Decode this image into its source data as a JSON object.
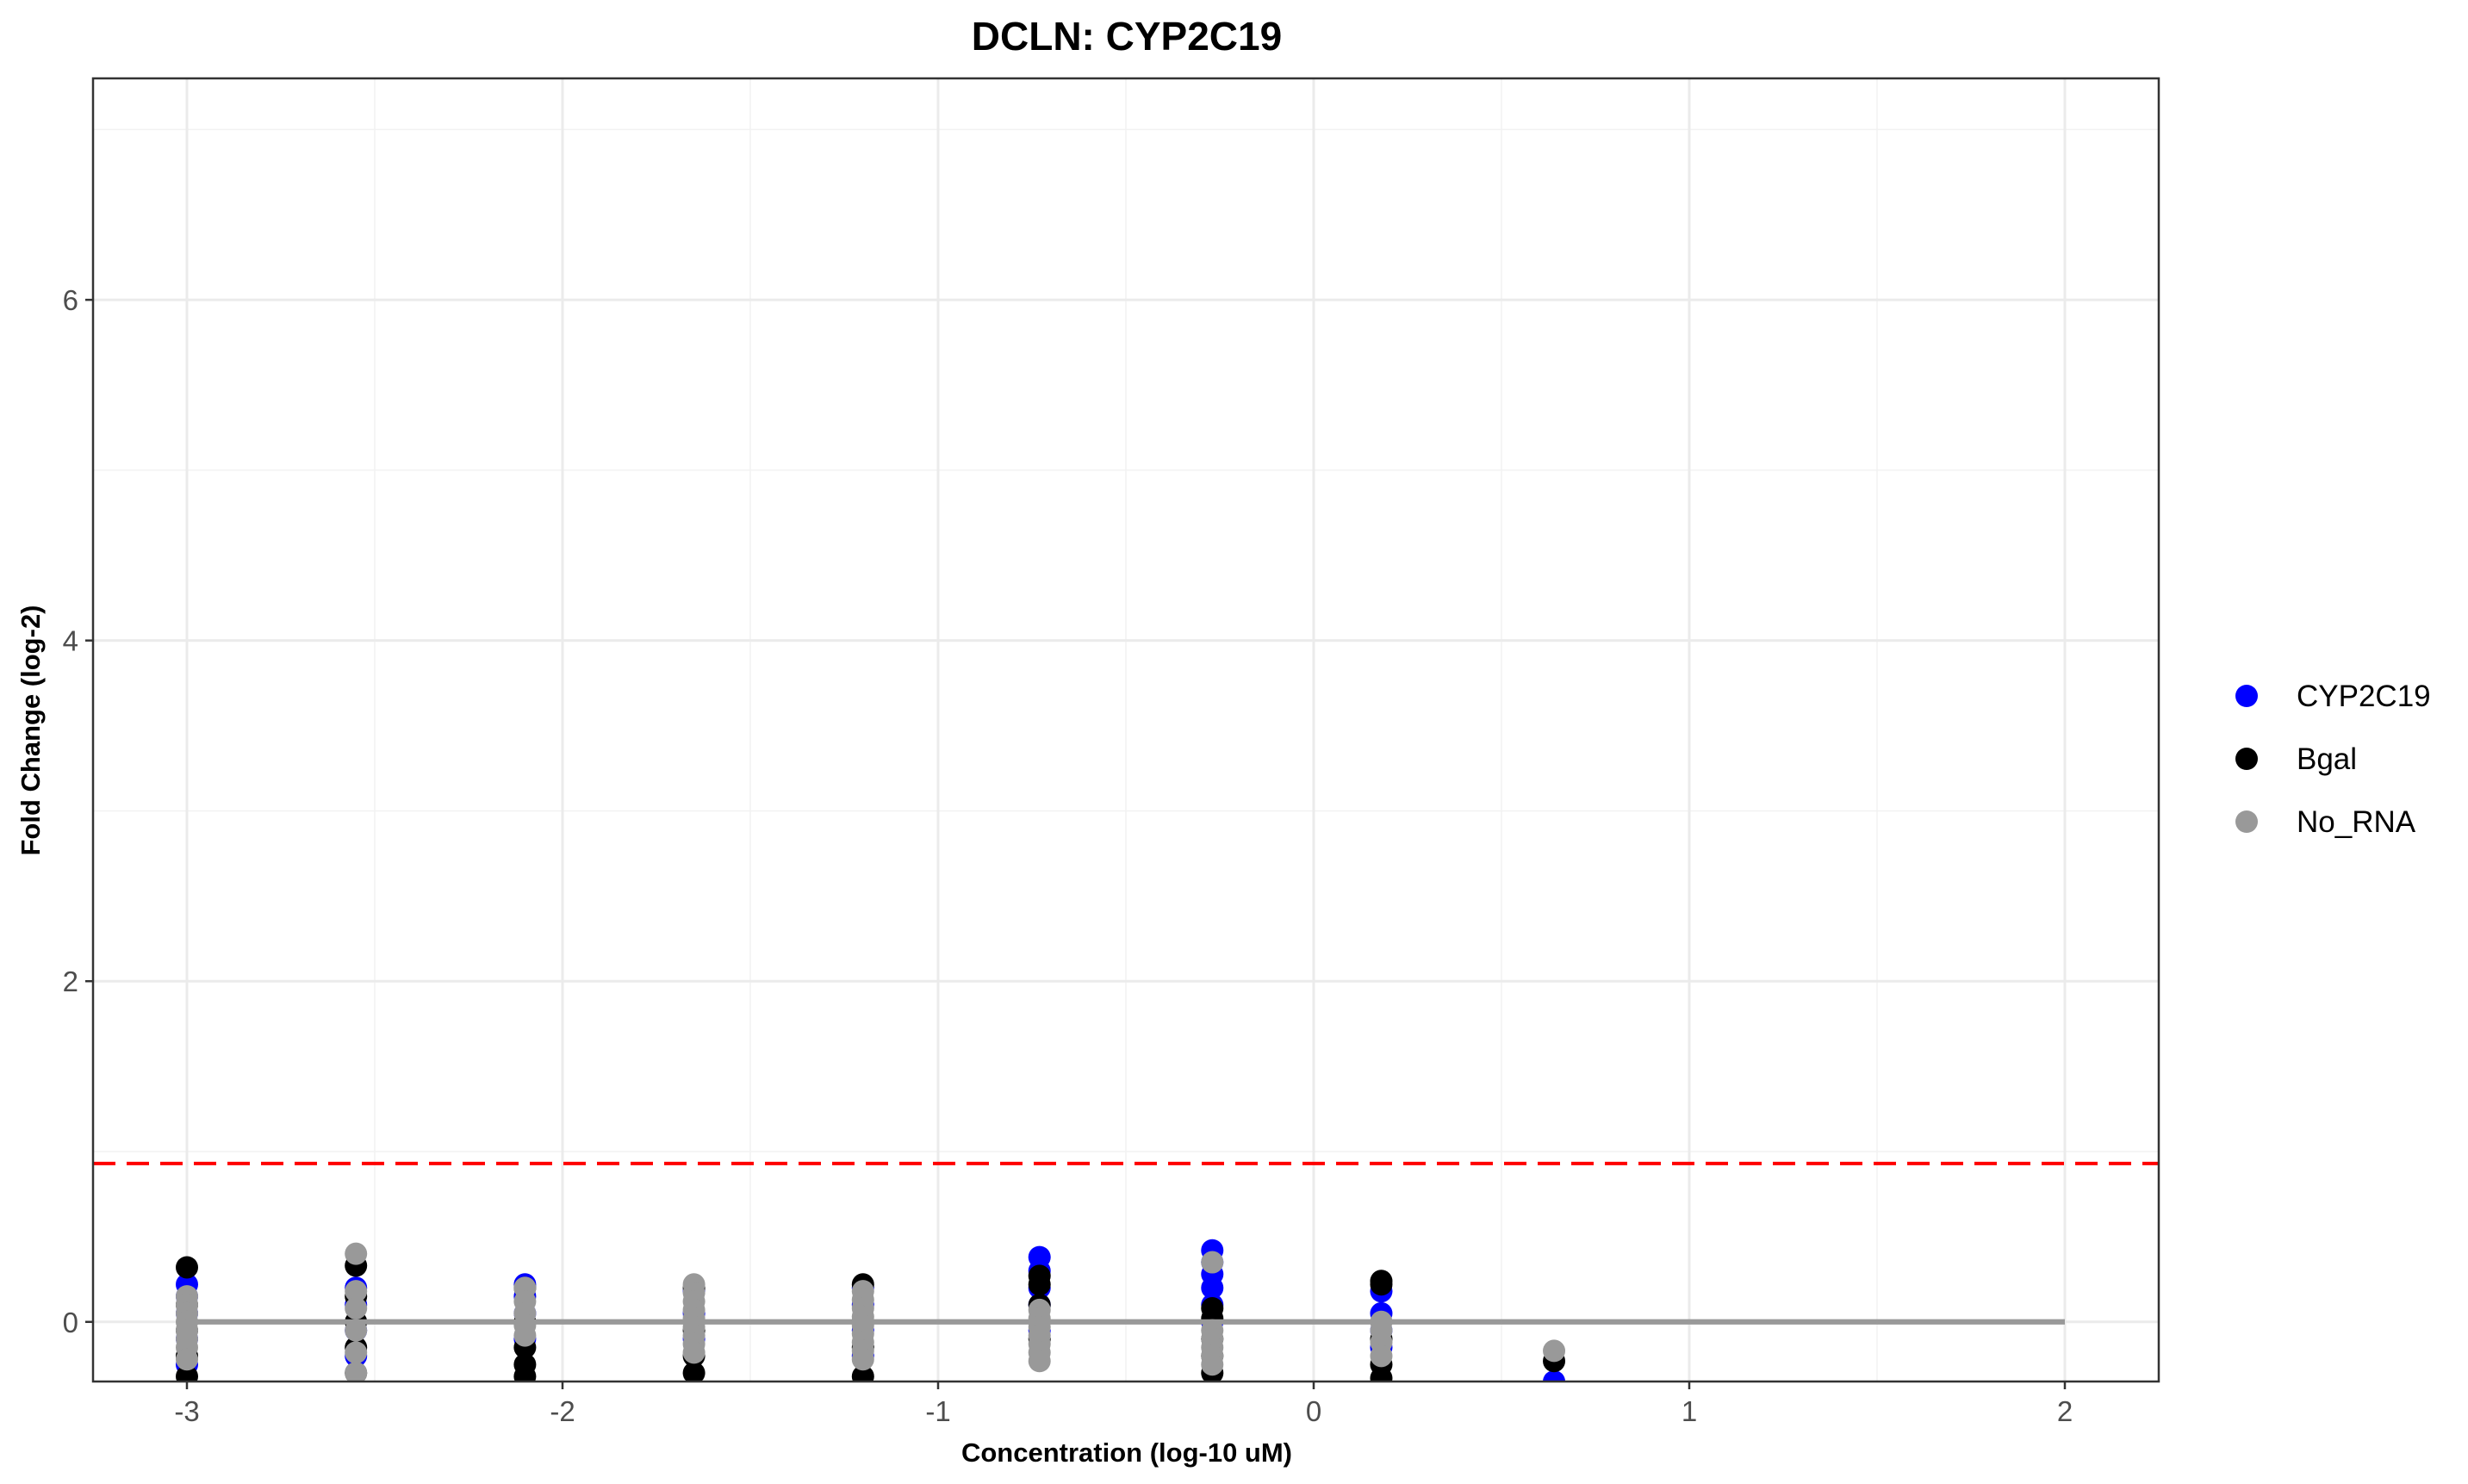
{
  "chart_data": {
    "type": "scatter",
    "title": "DCLN: CYP2C19",
    "xlabel": "Concentration (log-10 uM)",
    "ylabel": "Fold Change (log-2)",
    "xlim": [
      -3.25,
      2.25
    ],
    "ylim": [
      -0.35,
      7.3
    ],
    "x_ticks": [
      -3,
      -2,
      -1,
      0,
      1,
      2
    ],
    "x_tick_labels": [
      "-3",
      "-2",
      "-1",
      "0",
      "1",
      "2"
    ],
    "y_ticks": [
      0,
      2,
      4,
      6
    ],
    "y_tick_labels": [
      "0",
      "2",
      "4",
      "6"
    ],
    "grid": true,
    "legend_position": "right",
    "threshold_line": {
      "y": 0.93,
      "color": "#ff0000",
      "style": "dashed"
    },
    "baseline_line": {
      "y": 0,
      "x_range": [
        -3,
        2
      ],
      "color": "#999999"
    },
    "series": [
      {
        "name": "CYP2C19",
        "color": "#0000ff",
        "points": [
          [
            -3,
            0.22
          ],
          [
            -3,
            0.15
          ],
          [
            -3,
            0.05
          ],
          [
            -3,
            -0.1
          ],
          [
            -3,
            -0.25
          ],
          [
            -2.55,
            0.2
          ],
          [
            -2.55,
            0.1
          ],
          [
            -2.55,
            -0.05
          ],
          [
            -2.55,
            -0.2
          ],
          [
            -2.1,
            0.22
          ],
          [
            -2.1,
            0.15
          ],
          [
            -2.1,
            0.05
          ],
          [
            -2.1,
            -0.1
          ],
          [
            -1.65,
            0.18
          ],
          [
            -1.65,
            0.05
          ],
          [
            -1.65,
            -0.1
          ],
          [
            -1.2,
            0.2
          ],
          [
            -1.2,
            0.1
          ],
          [
            -1.2,
            -0.05
          ],
          [
            -1.2,
            -0.2
          ],
          [
            -0.73,
            0.38
          ],
          [
            -0.73,
            0.3
          ],
          [
            -0.73,
            0.2
          ],
          [
            -0.73,
            0.1
          ],
          [
            -0.73,
            -0.05
          ],
          [
            -0.27,
            0.42
          ],
          [
            -0.27,
            0.35
          ],
          [
            -0.27,
            0.28
          ],
          [
            -0.27,
            0.2
          ],
          [
            -0.27,
            0.1
          ],
          [
            -0.27,
            0.0
          ],
          [
            0.18,
            0.18
          ],
          [
            0.18,
            0.05
          ],
          [
            0.18,
            -0.05
          ],
          [
            0.18,
            -0.15
          ],
          [
            0.64,
            -0.35
          ]
        ]
      },
      {
        "name": "Bgal",
        "color": "#000000",
        "points": [
          [
            -3,
            0.32
          ],
          [
            -3,
            0.1
          ],
          [
            -3,
            -0.05
          ],
          [
            -3,
            -0.2
          ],
          [
            -3,
            -0.32
          ],
          [
            -2.55,
            0.33
          ],
          [
            -2.55,
            0.15
          ],
          [
            -2.55,
            0.0
          ],
          [
            -2.55,
            -0.15
          ],
          [
            -2.55,
            -0.3
          ],
          [
            -2.1,
            0.2
          ],
          [
            -2.1,
            0.0
          ],
          [
            -2.1,
            -0.15
          ],
          [
            -2.1,
            -0.25
          ],
          [
            -2.1,
            -0.32
          ],
          [
            -1.65,
            0.2
          ],
          [
            -1.65,
            -0.05
          ],
          [
            -1.65,
            -0.2
          ],
          [
            -1.65,
            -0.3
          ],
          [
            -1.2,
            0.22
          ],
          [
            -1.2,
            0.0
          ],
          [
            -1.2,
            -0.15
          ],
          [
            -1.2,
            -0.32
          ],
          [
            -0.73,
            0.27
          ],
          [
            -0.73,
            0.22
          ],
          [
            -0.73,
            0.1
          ],
          [
            -0.73,
            -0.1
          ],
          [
            -0.27,
            0.08
          ],
          [
            -0.27,
            0.02
          ],
          [
            -0.27,
            -0.1
          ],
          [
            -0.27,
            -0.2
          ],
          [
            -0.27,
            -0.3
          ],
          [
            0.18,
            0.24
          ],
          [
            0.18,
            0.22
          ],
          [
            0.18,
            -0.1
          ],
          [
            0.18,
            -0.25
          ],
          [
            0.18,
            -0.33
          ],
          [
            0.64,
            -0.23
          ]
        ]
      },
      {
        "name": "No_RNA",
        "color": "#999999",
        "points": [
          [
            -3,
            0.15
          ],
          [
            -3,
            0.1
          ],
          [
            -3,
            0.05
          ],
          [
            -3,
            0.0
          ],
          [
            -3,
            -0.05
          ],
          [
            -3,
            -0.1
          ],
          [
            -3,
            -0.15
          ],
          [
            -3,
            -0.22
          ],
          [
            -2.55,
            0.4
          ],
          [
            -2.55,
            0.18
          ],
          [
            -2.55,
            0.08
          ],
          [
            -2.55,
            -0.05
          ],
          [
            -2.55,
            -0.18
          ],
          [
            -2.55,
            -0.3
          ],
          [
            -2.1,
            0.2
          ],
          [
            -2.1,
            0.12
          ],
          [
            -2.1,
            0.05
          ],
          [
            -2.1,
            -0.02
          ],
          [
            -2.1,
            -0.08
          ],
          [
            -1.65,
            0.22
          ],
          [
            -1.65,
            0.17
          ],
          [
            -1.65,
            0.12
          ],
          [
            -1.65,
            0.07
          ],
          [
            -1.65,
            0.02
          ],
          [
            -1.65,
            -0.03
          ],
          [
            -1.65,
            -0.08
          ],
          [
            -1.65,
            -0.13
          ],
          [
            -1.65,
            -0.18
          ],
          [
            -1.2,
            0.18
          ],
          [
            -1.2,
            0.13
          ],
          [
            -1.2,
            0.08
          ],
          [
            -1.2,
            0.03
          ],
          [
            -1.2,
            -0.02
          ],
          [
            -1.2,
            -0.07
          ],
          [
            -1.2,
            -0.12
          ],
          [
            -1.2,
            -0.17
          ],
          [
            -1.2,
            -0.22
          ],
          [
            -0.73,
            0.07
          ],
          [
            -0.73,
            0.02
          ],
          [
            -0.73,
            -0.03
          ],
          [
            -0.73,
            -0.08
          ],
          [
            -0.73,
            -0.13
          ],
          [
            -0.73,
            -0.18
          ],
          [
            -0.73,
            -0.23
          ],
          [
            -0.27,
            0.35
          ],
          [
            -0.27,
            -0.05
          ],
          [
            -0.27,
            -0.1
          ],
          [
            -0.27,
            -0.15
          ],
          [
            -0.27,
            -0.2
          ],
          [
            -0.27,
            -0.25
          ],
          [
            0.18,
            0.0
          ],
          [
            0.18,
            -0.05
          ],
          [
            0.18,
            -0.12
          ],
          [
            0.18,
            -0.2
          ],
          [
            0.64,
            -0.17
          ]
        ]
      }
    ]
  }
}
